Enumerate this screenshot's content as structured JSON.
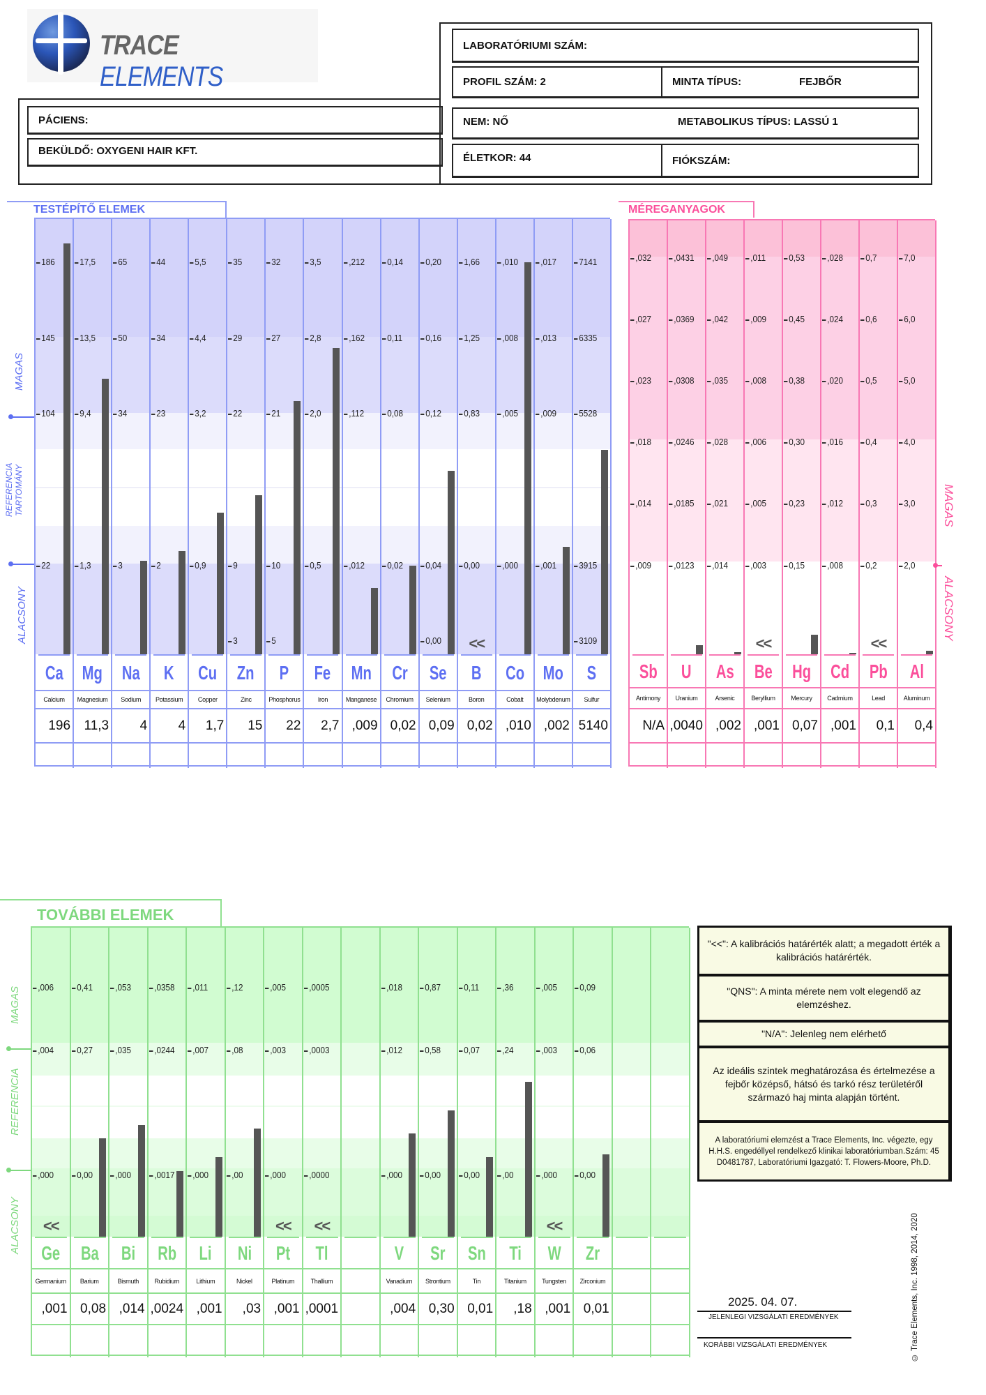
{
  "header": {
    "logo_word1": "TRACE",
    "logo_word2": "ELEMENTS",
    "lab_number_label": "LABORATÓRIUMI SZÁM:",
    "profile": "PROFIL SZÁM: 2",
    "sample_type_label": "MINTA TÍPUS:",
    "sample_type_value": "FEJBŐR",
    "patient_label": "PÁCIENS:",
    "sender": "BEKÜLDŐ: OXYGENI HAIR KFT.",
    "sex": "NEM: NŐ",
    "metabolic_type": "METABOLIKUS TÍPUS: LASSÚ 1",
    "age": "ÉLETKOR: 44",
    "account": "FIÓKSZÁM:"
  },
  "below_cal_symbol": "<<",
  "colors": {
    "blue": "#5d6ff2",
    "pink": "#fb4f9b",
    "green": "#7ed87e",
    "bar": "#555555"
  },
  "nutrients": {
    "title": "TESTÉPÍTŐ ELEMEK",
    "side_high": "MAGAS",
    "side_ref_1": "REFERENCIA",
    "side_ref_2": "TARTOMÁNY",
    "side_low": "ALACSONY",
    "elements": [
      {
        "symbol": "Ca",
        "name": "Calcium",
        "value": "196",
        "ticks": [
          "",
          "22",
          "",
          "104",
          "145",
          "186"
        ]
      },
      {
        "symbol": "Mg",
        "name": "Magnesium",
        "value": "11,3",
        "ticks": [
          "",
          "1,3",
          "",
          "9,4",
          "13,5",
          "17,5"
        ]
      },
      {
        "symbol": "Na",
        "name": "Sodium",
        "value": "4",
        "ticks": [
          "",
          "3",
          "",
          "34",
          "50",
          "65"
        ]
      },
      {
        "symbol": "K",
        "name": "Potassium",
        "value": "4",
        "ticks": [
          "",
          "2",
          "",
          "23",
          "34",
          "44"
        ]
      },
      {
        "symbol": "Cu",
        "name": "Copper",
        "value": "1,7",
        "ticks": [
          "",
          "0,9",
          "",
          "3,2",
          "4,4",
          "5,5"
        ]
      },
      {
        "symbol": "Zn",
        "name": "Zinc",
        "value": "15",
        "ticks": [
          "3",
          "9",
          "",
          "22",
          "29",
          "35"
        ]
      },
      {
        "symbol": "P",
        "name": "Phosphorus",
        "value": "22",
        "ticks": [
          "5",
          "10",
          "",
          "21",
          "27",
          "32"
        ]
      },
      {
        "symbol": "Fe",
        "name": "Iron",
        "value": "2,7",
        "ticks": [
          "",
          "0,5",
          "",
          "2,0",
          "2,8",
          "3,5"
        ]
      },
      {
        "symbol": "Mn",
        "name": "Manganese",
        "value": ",009",
        "ticks": [
          "",
          ",012",
          "",
          ",112",
          ",162",
          ",212"
        ]
      },
      {
        "symbol": "Cr",
        "name": "Chromium",
        "value": "0,02",
        "ticks": [
          "",
          "0,02",
          "",
          "0,08",
          "0,11",
          "0,14"
        ]
      },
      {
        "symbol": "Se",
        "name": "Selenium",
        "value": "0,09",
        "ticks": [
          "0,00",
          "0,04",
          "",
          "0,12",
          "0,16",
          "0,20"
        ]
      },
      {
        "symbol": "B",
        "name": "Boron",
        "value": "0,02",
        "below_cal": true,
        "ticks": [
          "",
          "0,00",
          "",
          "0,83",
          "1,25",
          "1,66"
        ]
      },
      {
        "symbol": "Co",
        "name": "Cobalt",
        "value": ",010",
        "ticks": [
          "",
          ",000",
          "",
          ",005",
          ",008",
          ",010"
        ]
      },
      {
        "symbol": "Mo",
        "name": "Molybdenum",
        "value": ",002",
        "ticks": [
          "",
          ",001",
          "",
          ",009",
          ",013",
          ",017"
        ]
      },
      {
        "symbol": "S",
        "name": "Sulfur",
        "value": "5140",
        "ticks": [
          "3109",
          "3915",
          "",
          "5528",
          "6335",
          "7141"
        ]
      }
    ]
  },
  "toxic": {
    "title": "MÉREGANYAGOK",
    "side_high": "MAGAS",
    "side_low": "ALACSONY",
    "elements": [
      {
        "symbol": "Sb",
        "name": "Antimony",
        "value": "N/A",
        "ticks": [
          ",009",
          ",014",
          ",018",
          ",023",
          ",027",
          ",032"
        ]
      },
      {
        "symbol": "U",
        "name": "Uranium",
        "value": ",0040",
        "ticks": [
          ",0123",
          ",0185",
          ",0246",
          ",0308",
          ",0369",
          ",0431"
        ]
      },
      {
        "symbol": "As",
        "name": "Arsenic",
        "value": ",002",
        "ticks": [
          ",014",
          ",021",
          ",028",
          ",035",
          ",042",
          ",049"
        ]
      },
      {
        "symbol": "Be",
        "name": "Beryllium",
        "value": ",001",
        "below_cal": true,
        "ticks": [
          ",003",
          ",005",
          ",006",
          ",008",
          ",009",
          ",011"
        ]
      },
      {
        "symbol": "Hg",
        "name": "Mercury",
        "value": "0,07",
        "ticks": [
          "0,15",
          "0,23",
          "0,30",
          "0,38",
          "0,45",
          "0,53"
        ]
      },
      {
        "symbol": "Cd",
        "name": "Cadmium",
        "value": ",001",
        "ticks": [
          ",008",
          ",012",
          ",016",
          ",020",
          ",024",
          ",028"
        ]
      },
      {
        "symbol": "Pb",
        "name": "Lead",
        "value": "0,1",
        "below_cal": true,
        "ticks": [
          "0,2",
          "0,3",
          "0,4",
          "0,5",
          "0,6",
          "0,7"
        ]
      },
      {
        "symbol": "Al",
        "name": "Aluminum",
        "value": "0,4",
        "ticks": [
          "2,0",
          "3,0",
          "4,0",
          "5,0",
          "6,0",
          "7,0"
        ]
      }
    ]
  },
  "additional": {
    "title": "TOVÁBBI ELEMEK",
    "side_high": "MAGAS",
    "side_ref": "REFERENCIA",
    "side_low": "ALACSONY",
    "elements": [
      {
        "symbol": "Ge",
        "name": "Germanium",
        "value": ",001",
        "below_cal": true,
        "ticks": [
          ",000",
          ",004",
          ",006"
        ]
      },
      {
        "symbol": "Ba",
        "name": "Barium",
        "value": "0,08",
        "ticks": [
          "0,00",
          "0,27",
          "0,41"
        ]
      },
      {
        "symbol": "Bi",
        "name": "Bismuth",
        "value": ",014",
        "ticks": [
          ",000",
          ",035",
          ",053"
        ]
      },
      {
        "symbol": "Rb",
        "name": "Rubidium",
        "value": ",0024",
        "ticks": [
          ",0017",
          ",0244",
          ",0358"
        ]
      },
      {
        "symbol": "Li",
        "name": "Lithium",
        "value": ",001",
        "ticks": [
          ",000",
          ",007",
          ",011"
        ]
      },
      {
        "symbol": "Ni",
        "name": "Nickel",
        "value": ",03",
        "ticks": [
          ",00",
          ",08",
          ",12"
        ]
      },
      {
        "symbol": "Pt",
        "name": "Platinum",
        "value": ",001",
        "below_cal": true,
        "ticks": [
          ",000",
          ",003",
          ",005"
        ]
      },
      {
        "symbol": "Tl",
        "name": "Thallium",
        "value": ",0001",
        "below_cal": true,
        "ticks": [
          ",0000",
          ",0003",
          ",0005"
        ]
      },
      {
        "empty": true
      },
      {
        "symbol": "V",
        "name": "Vanadium",
        "value": ",004",
        "ticks": [
          ",000",
          ",012",
          ",018"
        ]
      },
      {
        "symbol": "Sr",
        "name": "Strontium",
        "value": "0,30",
        "ticks": [
          "0,00",
          "0,58",
          "0,87"
        ]
      },
      {
        "symbol": "Sn",
        "name": "Tin",
        "value": "0,01",
        "ticks": [
          "0,00",
          "0,07",
          "0,11"
        ]
      },
      {
        "symbol": "Ti",
        "name": "Titanium",
        "value": ",18",
        "ticks": [
          ",00",
          ",24",
          ",36"
        ]
      },
      {
        "symbol": "W",
        "name": "Tungsten",
        "value": ",001",
        "below_cal": true,
        "ticks": [
          ",000",
          ",003",
          ",005"
        ]
      },
      {
        "symbol": "Zr",
        "name": "Zirconium",
        "value": "0,01",
        "ticks": [
          "0,00",
          "0,06",
          "0,09"
        ]
      },
      {
        "empty": true
      },
      {
        "empty": true
      }
    ]
  },
  "notes": [
    "\"<<\": A kalibrációs határérték alatt; a megadott érték a kalibrációs határérték.",
    "\"QNS\": A minta mérete nem volt elegendő az elemzéshez.",
    "\"N/A\": Jelenleg nem elérhető",
    "Az ideális szintek meghatározása és értelmezése a fejbőr középső, hátsó és tarkó rész területéről származó haj minta alapján történt.",
    "A laboratóriumi elemzést a Trace Elements, Inc. végezte, egy H.H.S. engedéllyel rendelkező klinikai laboratóriumban.Szám: 45 D0481787, Laboratóriumi Igazgató: T. Flowers-Moore, Ph.D."
  ],
  "results": {
    "current_date": "2025. 04. 07.",
    "current_label": "JELENLEGI VIZSGÁLATI EREDMÉNYEK",
    "previous_label": "KORÁBBI VIZSGÁLATI EREDMÉNYEK"
  },
  "copyright": "© Trace Elements, Inc. 1998, 2014, 2020"
}
